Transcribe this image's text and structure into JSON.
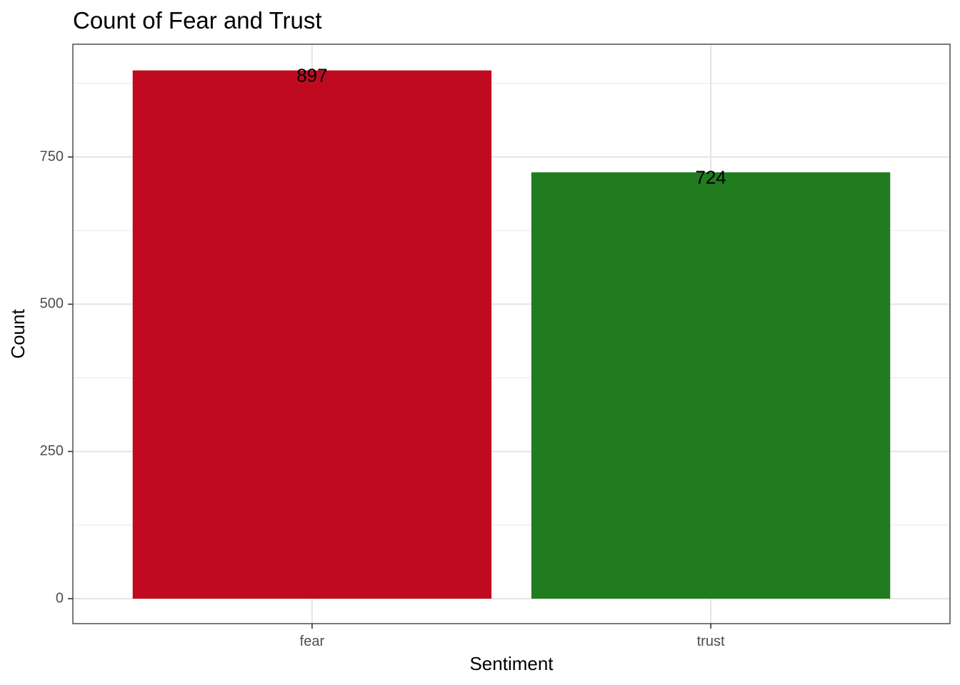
{
  "chart_data": {
    "type": "bar",
    "title": "Count of Fear and Trust",
    "xlabel": "Sentiment",
    "ylabel": "Count",
    "categories": [
      "fear",
      "trust"
    ],
    "values": [
      897,
      724
    ],
    "data_labels": [
      "897",
      "724"
    ],
    "colors": [
      "#C00A20",
      "#207C1E"
    ],
    "ylim": [
      0,
      942
    ],
    "yticks": [
      0,
      250,
      500,
      750
    ],
    "ytick_labels": [
      "0",
      "250",
      "500",
      "750"
    ],
    "grid": true,
    "legend": "none"
  }
}
